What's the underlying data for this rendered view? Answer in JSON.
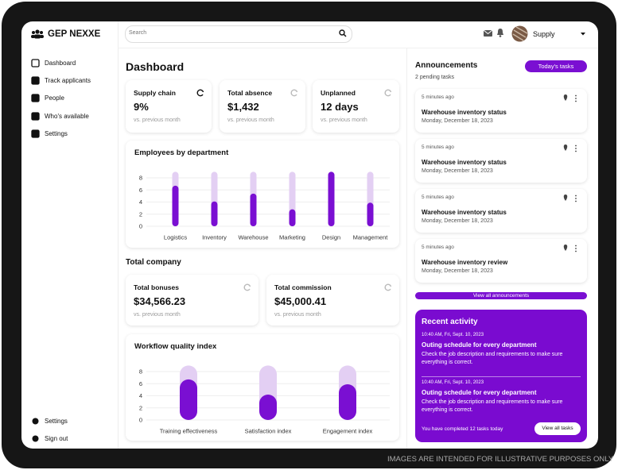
{
  "brand": "GEP NEXXE",
  "nav": [
    "Dashboard",
    "Track applicants",
    "People",
    "Who's available",
    "Settings"
  ],
  "nav_bottom": [
    "Settings",
    "Sign out"
  ],
  "search_placeholder": "Search",
  "user": "Supply",
  "page_title": "Dashboard",
  "kpis": [
    {
      "label": "Supply chain",
      "value": "9%",
      "note": "vs. previous month"
    },
    {
      "label": "Total absence",
      "value": "$1,432",
      "note": "vs. previous month"
    },
    {
      "label": "Unplanned",
      "value": "12 days",
      "note": "vs. previous month"
    }
  ],
  "section_title": "Total company",
  "kpis2": [
    {
      "label": "Total bonuses",
      "value": "$34,566.23",
      "note": "vs. previous month"
    },
    {
      "label": "Total commission",
      "value": "$45,000.41",
      "note": "vs. previous month"
    }
  ],
  "chart_data": [
    {
      "type": "bar",
      "title": "Employees by department",
      "categories": [
        "Logistics",
        "Inventory",
        "Warehouse",
        "Marketing",
        "Design",
        "Management"
      ],
      "values": [
        6.7,
        4.1,
        5.4,
        2.8,
        9,
        3.9
      ],
      "color": "#7a0fd2",
      "track_color": "#e3cff3",
      "ylim": [
        0,
        9
      ],
      "yticks": [
        0,
        2,
        4,
        6,
        8
      ],
      "grid": true
    },
    {
      "type": "bar",
      "title": "Workflow quality index",
      "categories": [
        "Training effectiveness",
        "Satisfaction index",
        "Engagement index"
      ],
      "values": [
        6.7,
        4.2,
        5.9
      ],
      "color": "#7a0fd2",
      "track_color": "#e3cff3",
      "ylim": [
        0,
        9
      ],
      "yticks": [
        0,
        2,
        4,
        6,
        8
      ],
      "grid": true
    }
  ],
  "announcements": {
    "title": "Announcements",
    "button": "Today's tasks",
    "subtitle": "2 pending tasks",
    "items": [
      {
        "time": "5 minutes ago",
        "title": "Warehouse inventory status",
        "date": "Monday, December 18, 2023"
      },
      {
        "time": "5 minutes ago",
        "title": "Warehouse inventory status",
        "date": "Monday, December 18, 2023"
      },
      {
        "time": "5 minutes ago",
        "title": "Warehouse inventory status",
        "date": "Monday, December 18, 2023"
      },
      {
        "time": "5 minutes ago",
        "title": "Warehouse inventory review",
        "date": "Monday, December 18, 2023"
      }
    ],
    "link": "View all announcements"
  },
  "activity": {
    "title": "Recent activity",
    "items": [
      {
        "time": "10:40 AM, Fri, Sept. 10, 2023",
        "title": "Outing schedule for every department",
        "text": "Check the job description and requirements to make sure everything is correct."
      },
      {
        "time": "10:40 AM, Fri, Sept. 10, 2023",
        "title": "Outing schedule for every department",
        "text": "Check the job description and requirements to make sure everything is correct."
      }
    ],
    "footer": "You have completed 12 tasks today",
    "button": "View all tasks"
  },
  "disclaimer": "IMAGES ARE INTENDED FOR ILLUSTRATIVE PURPOSES ONLY"
}
